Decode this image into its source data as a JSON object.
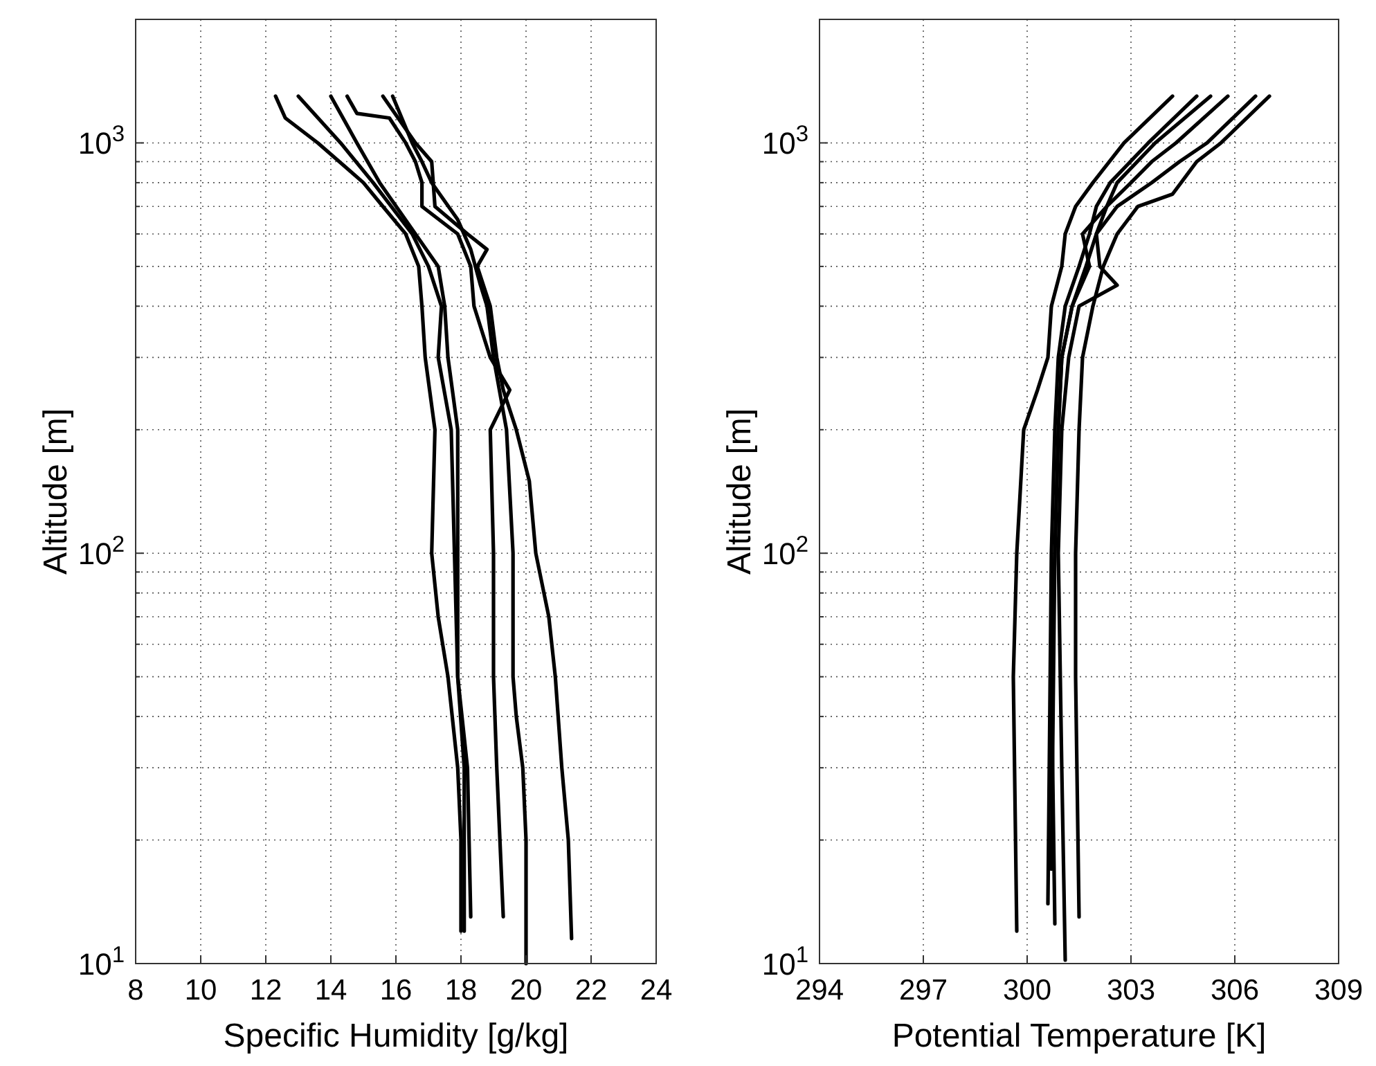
{
  "chart_data": [
    {
      "type": "line",
      "xlabel": "Specific Humidity [g/kg]",
      "ylabel": "Altitude [m]",
      "log": "y",
      "grid": true,
      "xlim": [
        8,
        24
      ],
      "xticks": [
        8,
        10,
        12,
        14,
        16,
        18,
        20,
        22,
        24
      ],
      "ylim": [
        10,
        2000
      ],
      "yticks": [
        {
          "value": 10,
          "label": "10$^{1}$"
        },
        {
          "value": 20,
          "label": null
        },
        {
          "value": 30,
          "label": null
        },
        {
          "value": 40,
          "label": null
        },
        {
          "value": 50,
          "label": null
        },
        {
          "value": 60,
          "label": null
        },
        {
          "value": 70,
          "label": null
        },
        {
          "value": 80,
          "label": null
        },
        {
          "value": 90,
          "label": null
        },
        {
          "value": 100,
          "label": "10$^{2}$"
        },
        {
          "value": 200,
          "label": null
        },
        {
          "value": 300,
          "label": null
        },
        {
          "value": 400,
          "label": null
        },
        {
          "value": 500,
          "label": null
        },
        {
          "value": 600,
          "label": null
        },
        {
          "value": 700,
          "label": null
        },
        {
          "value": 800,
          "label": null
        },
        {
          "value": 900,
          "label": null
        },
        {
          "value": 1000,
          "label": "10$^{3}$"
        },
        {
          "value": 2000,
          "label": null
        }
      ],
      "series": [
        {
          "color": "#000000",
          "x": [
            12.3,
            12.6,
            13.6,
            15.0,
            15.6,
            16.3,
            16.7,
            16.8,
            16.9,
            17.2,
            17.1,
            17.3,
            17.6,
            17.9,
            18.0,
            18.0
          ],
          "values": [
            1300,
            1150,
            1000,
            800,
            700,
            600,
            500,
            400,
            300,
            200,
            100,
            70,
            50,
            30,
            20,
            12
          ]
        },
        {
          "color": "#000000",
          "x": [
            13.0,
            14.3,
            15.3,
            16.5,
            17.0,
            17.4,
            17.3,
            17.7,
            17.8,
            17.9,
            18.2,
            18.3
          ],
          "values": [
            1300,
            1000,
            800,
            600,
            500,
            400,
            300,
            200,
            100,
            50,
            30,
            13
          ]
        },
        {
          "color": "#000000",
          "x": [
            14.0,
            14.8,
            15.5,
            16.6,
            17.3,
            17.5,
            17.6,
            17.9,
            17.9,
            17.9,
            18.1,
            18.1
          ],
          "values": [
            1300,
            1000,
            800,
            600,
            500,
            400,
            300,
            200,
            100,
            50,
            30,
            12
          ]
        },
        {
          "color": "#000000",
          "x": [
            14.5,
            14.8,
            15.8,
            16.3,
            16.6,
            16.8,
            16.8,
            17.9,
            18.3,
            18.4,
            18.9,
            19.5,
            18.9,
            19.0,
            19.0,
            19.1,
            19.3
          ],
          "values": [
            1300,
            1180,
            1150,
            1000,
            900,
            800,
            700,
            600,
            500,
            400,
            300,
            250,
            200,
            100,
            50,
            30,
            13
          ]
        },
        {
          "color": "#000000",
          "x": [
            15.6,
            16.6,
            17.1,
            17.2,
            18.2,
            18.8,
            18.5,
            18.9,
            19.1,
            19.3,
            19.7,
            20.1,
            20.3,
            20.7,
            20.9,
            21.1,
            21.3,
            21.4
          ],
          "values": [
            1300,
            1000,
            900,
            700,
            600,
            550,
            500,
            400,
            300,
            250,
            200,
            150,
            100,
            70,
            50,
            30,
            20,
            11.5
          ]
        },
        {
          "color": "#000000",
          "x": [
            15.9,
            16.5,
            16.8,
            17.1,
            17.9,
            18.3,
            18.6,
            18.8,
            19.0,
            19.4,
            19.6,
            19.6,
            19.6,
            19.7,
            19.9,
            20.0,
            20.0
          ],
          "values": [
            1300,
            1000,
            900,
            800,
            650,
            550,
            450,
            400,
            300,
            200,
            100,
            70,
            50,
            40,
            30,
            20,
            10
          ]
        }
      ]
    },
    {
      "type": "line",
      "xlabel": "Potential Temperature [K]",
      "ylabel": "Altitude [m]",
      "log": "y",
      "grid": true,
      "xlim": [
        294,
        309
      ],
      "xticks": [
        294,
        297,
        300,
        303,
        306,
        309
      ],
      "ylim": [
        10,
        2000
      ],
      "yticks": [
        {
          "value": 10,
          "label": "10$^{1}$"
        },
        {
          "value": 20,
          "label": null
        },
        {
          "value": 30,
          "label": null
        },
        {
          "value": 40,
          "label": null
        },
        {
          "value": 50,
          "label": null
        },
        {
          "value": 60,
          "label": null
        },
        {
          "value": 70,
          "label": null
        },
        {
          "value": 80,
          "label": null
        },
        {
          "value": 90,
          "label": null
        },
        {
          "value": 100,
          "label": "10$^{2}$"
        },
        {
          "value": 200,
          "label": null
        },
        {
          "value": 300,
          "label": null
        },
        {
          "value": 400,
          "label": null
        },
        {
          "value": 500,
          "label": null
        },
        {
          "value": 600,
          "label": null
        },
        {
          "value": 700,
          "label": null
        },
        {
          "value": 800,
          "label": null
        },
        {
          "value": 900,
          "label": null
        },
        {
          "value": 1000,
          "label": "10$^{3}$"
        },
        {
          "value": 2000,
          "label": null
        }
      ],
      "series": [
        {
          "color": "#000000",
          "x": [
            299.7,
            299.6,
            299.7,
            299.9,
            300.3,
            300.6,
            300.7,
            301.0,
            301.1,
            301.4,
            301.9,
            302.8,
            304.2
          ],
          "values": [
            12,
            50,
            100,
            200,
            250,
            300,
            400,
            500,
            600,
            700,
            800,
            1000,
            1300
          ]
        },
        {
          "color": "#000000",
          "x": [
            300.6,
            300.7,
            300.8,
            300.9,
            301.1,
            301.5,
            301.8,
            302.0,
            302.4,
            303.5,
            304.9
          ],
          "values": [
            14,
            100,
            200,
            300,
            400,
            500,
            600,
            700,
            800,
            1000,
            1300
          ]
        },
        {
          "color": "#000000",
          "x": [
            300.8,
            300.7,
            300.8,
            300.9,
            301.0,
            301.3,
            301.8,
            301.6,
            302.3,
            302.6,
            303.7,
            305.3
          ],
          "values": [
            12.5,
            50,
            100,
            200,
            300,
            400,
            500,
            600,
            700,
            800,
            1000,
            1300
          ]
        },
        {
          "color": "#000000",
          "x": [
            301.1,
            301.0,
            300.9,
            301.0,
            301.2,
            301.5,
            302.6,
            302.1,
            302.0,
            302.3,
            303.0,
            303.6,
            304.3,
            305.8
          ],
          "values": [
            10.2,
            30,
            100,
            200,
            300,
            400,
            450,
            500,
            600,
            700,
            800,
            900,
            1000,
            1300
          ]
        },
        {
          "color": "#000000",
          "x": [
            301.5,
            301.4,
            301.4,
            301.5,
            301.6,
            301.9,
            302.2,
            302.6,
            303.2,
            304.2,
            304.9,
            305.6,
            307.0
          ],
          "values": [
            13,
            50,
            100,
            200,
            300,
            400,
            500,
            600,
            700,
            750,
            900,
            1000,
            1300
          ]
        },
        {
          "color": "#000000",
          "x": [
            300.7,
            300.8,
            300.9,
            301.0,
            301.3,
            301.7,
            302.0,
            302.6,
            303.6,
            304.4,
            305.2,
            306.6
          ],
          "values": [
            17,
            100,
            200,
            300,
            400,
            500,
            600,
            700,
            800,
            900,
            1000,
            1300
          ]
        }
      ]
    }
  ]
}
